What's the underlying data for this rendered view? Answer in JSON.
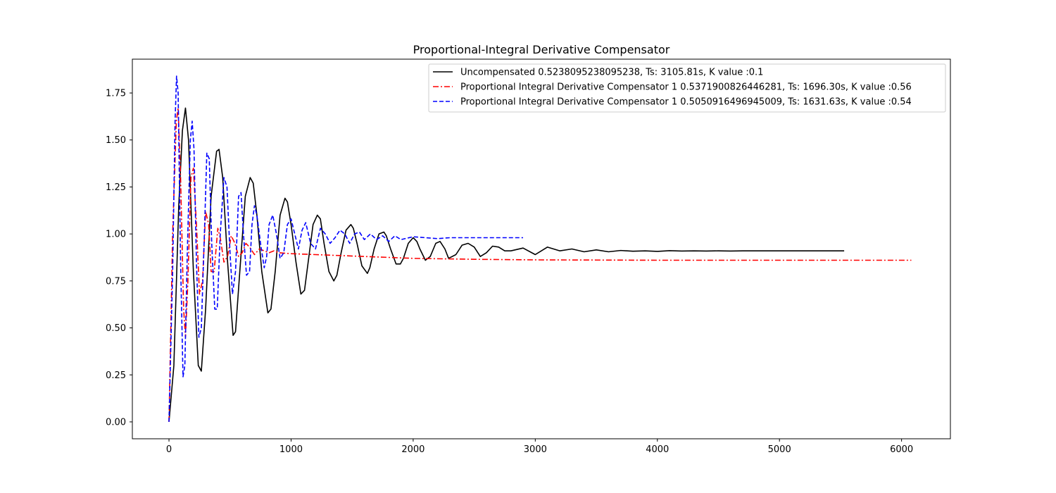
{
  "chart_data": {
    "type": "line",
    "title": "Proportional-Integral Derivative Compensator",
    "xlabel": "",
    "ylabel": "",
    "xlim": [
      -300,
      6400
    ],
    "ylim": [
      -0.09,
      1.93
    ],
    "xticks": [
      0,
      1000,
      2000,
      3000,
      4000,
      5000,
      6000
    ],
    "xtick_labels": [
      "0",
      "1000",
      "2000",
      "3000",
      "4000",
      "5000",
      "6000"
    ],
    "yticks": [
      0.0,
      0.25,
      0.5,
      0.75,
      1.0,
      1.25,
      1.5,
      1.75
    ],
    "ytick_labels": [
      "0.00",
      "0.25",
      "0.50",
      "0.75",
      "1.00",
      "1.25",
      "1.50",
      "1.75"
    ],
    "grid": false,
    "legend_position": "top-right",
    "series": [
      {
        "name": "Uncompensated 0.5238095238095238, Ts: 3105.81s, K value :0.1",
        "color": "#000000",
        "linestyle": "solid",
        "x": [
          0,
          40,
          80,
          110,
          135,
          160,
          200,
          240,
          265,
          300,
          345,
          390,
          410,
          440,
          480,
          525,
          545,
          580,
          625,
          665,
          690,
          720,
          760,
          810,
          835,
          870,
          910,
          950,
          970,
          1000,
          1040,
          1080,
          1110,
          1140,
          1180,
          1215,
          1240,
          1270,
          1310,
          1350,
          1375,
          1410,
          1450,
          1490,
          1510,
          1540,
          1580,
          1625,
          1645,
          1680,
          1720,
          1760,
          1780,
          1815,
          1860,
          1895,
          1920,
          1960,
          2000,
          2030,
          2055,
          2100,
          2140,
          2185,
          2220,
          2260,
          2290,
          2350,
          2400,
          2450,
          2500,
          2550,
          2600,
          2650,
          2700,
          2750,
          2800,
          2900,
          3000,
          3100,
          3200,
          3300,
          3400,
          3500,
          3600,
          3700,
          3800,
          3900,
          4000,
          4100,
          4200,
          4300,
          4400,
          4500,
          4600,
          4700,
          4800,
          4900,
          5000,
          5100,
          5200,
          5300,
          5400,
          5530
        ],
        "values": [
          0.0,
          0.3,
          1.15,
          1.55,
          1.67,
          1.5,
          0.8,
          0.3,
          0.27,
          0.6,
          1.2,
          1.44,
          1.45,
          1.3,
          0.85,
          0.46,
          0.48,
          0.8,
          1.2,
          1.3,
          1.27,
          1.1,
          0.8,
          0.58,
          0.6,
          0.8,
          1.1,
          1.19,
          1.17,
          1.05,
          0.85,
          0.68,
          0.7,
          0.85,
          1.05,
          1.1,
          1.08,
          0.95,
          0.8,
          0.75,
          0.78,
          0.9,
          1.02,
          1.05,
          1.03,
          0.95,
          0.83,
          0.79,
          0.82,
          0.92,
          1.0,
          1.01,
          0.99,
          0.92,
          0.84,
          0.84,
          0.87,
          0.95,
          0.98,
          0.96,
          0.92,
          0.86,
          0.88,
          0.95,
          0.96,
          0.92,
          0.87,
          0.89,
          0.94,
          0.95,
          0.93,
          0.88,
          0.9,
          0.935,
          0.93,
          0.91,
          0.91,
          0.925,
          0.89,
          0.93,
          0.91,
          0.92,
          0.905,
          0.915,
          0.905,
          0.912,
          0.908,
          0.91,
          0.907,
          0.911,
          0.909,
          0.91,
          0.909,
          0.91,
          0.909,
          0.91,
          0.91,
          0.91,
          0.91,
          0.91,
          0.91,
          0.91,
          0.91,
          0.91
        ]
      },
      {
        "name": "Proportional Integral Derivative Compensator 1 0.5371900826446281, Ts: 1696.30s, K value :0.56",
        "color": "#ff0000",
        "linestyle": "dashdot",
        "x": [
          0,
          30,
          60,
          75,
          95,
          120,
          135,
          155,
          180,
          200,
          225,
          250,
          275,
          300,
          325,
          345,
          370,
          400,
          420,
          450,
          480,
          510,
          540,
          570,
          600,
          630,
          660,
          700,
          740,
          780,
          820,
          860,
          900,
          1000,
          1200,
          1400,
          1600,
          1800,
          2000,
          2500,
          3000,
          3500,
          4000,
          4500,
          5000,
          5500,
          6080
        ],
        "values": [
          0.0,
          1.0,
          1.6,
          1.67,
          1.3,
          0.6,
          0.45,
          0.75,
          1.3,
          1.35,
          1.05,
          0.68,
          0.75,
          1.12,
          1.05,
          0.8,
          0.8,
          1.03,
          0.98,
          0.85,
          0.88,
          0.99,
          0.95,
          0.88,
          0.9,
          0.95,
          0.93,
          0.89,
          0.92,
          0.91,
          0.9,
          0.91,
          0.9,
          0.895,
          0.89,
          0.885,
          0.88,
          0.875,
          0.87,
          0.865,
          0.862,
          0.861,
          0.86,
          0.86,
          0.86,
          0.86,
          0.86
        ]
      },
      {
        "name": "Proportional Integral Derivative Compensator 1 0.5050916496945009, Ts: 1631.63s, K value :0.54",
        "color": "#0000ff",
        "linestyle": "dashed",
        "x": [
          0,
          30,
          50,
          62,
          75,
          95,
          115,
          130,
          150,
          175,
          190,
          205,
          225,
          245,
          265,
          290,
          310,
          330,
          350,
          375,
          395,
          420,
          450,
          475,
          500,
          520,
          545,
          570,
          590,
          610,
          635,
          660,
          680,
          700,
          720,
          750,
          780,
          800,
          820,
          850,
          880,
          910,
          940,
          970,
          1000,
          1030,
          1060,
          1090,
          1120,
          1160,
          1200,
          1240,
          1280,
          1320,
          1360,
          1400,
          1440,
          1480,
          1520,
          1560,
          1600,
          1650,
          1700,
          1750,
          1800,
          1850,
          1900,
          2000,
          2100,
          2200,
          2300,
          2400,
          2500,
          2600,
          2700,
          2800,
          2900
        ],
        "values": [
          0.0,
          0.8,
          1.6,
          1.84,
          1.75,
          0.85,
          0.24,
          0.3,
          0.9,
          1.5,
          1.6,
          1.45,
          0.85,
          0.45,
          0.5,
          1.0,
          1.43,
          1.4,
          0.95,
          0.6,
          0.6,
          1.0,
          1.3,
          1.25,
          0.9,
          0.68,
          0.8,
          1.2,
          1.22,
          1.0,
          0.78,
          0.8,
          1.05,
          1.15,
          1.1,
          0.95,
          0.82,
          0.88,
          1.05,
          1.1,
          1.0,
          0.87,
          0.9,
          1.05,
          1.08,
          1.0,
          0.92,
          1.02,
          1.06,
          0.95,
          0.92,
          1.03,
          1.0,
          0.95,
          0.98,
          1.02,
          1.0,
          0.95,
          1.0,
          1.01,
          0.97,
          1.0,
          0.97,
          0.99,
          0.96,
          0.99,
          0.97,
          0.985,
          0.98,
          0.975,
          0.98,
          0.98,
          0.98,
          0.98,
          0.98,
          0.98,
          0.98
        ]
      }
    ]
  }
}
